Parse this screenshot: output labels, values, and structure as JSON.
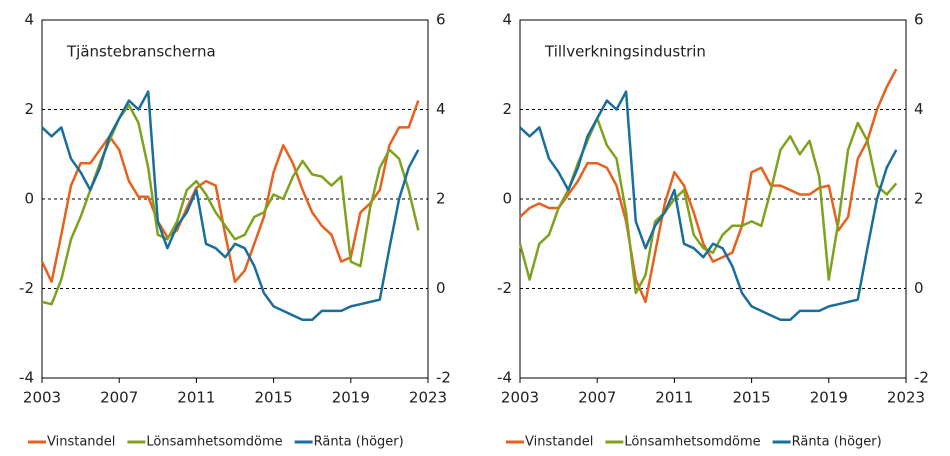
{
  "chart_data": [
    {
      "type": "line",
      "title": "Tjänstebranscherna",
      "x": [
        2003,
        2003.5,
        2004,
        2004.5,
        2005,
        2005.5,
        2006,
        2006.5,
        2007,
        2007.5,
        2008,
        2008.5,
        2009,
        2009.5,
        2010,
        2010.5,
        2011,
        2011.5,
        2012,
        2012.5,
        2013,
        2013.5,
        2014,
        2014.5,
        2015,
        2015.5,
        2016,
        2016.5,
        2017,
        2017.5,
        2018,
        2018.5,
        2019,
        2019.5,
        2020,
        2020.5,
        2021,
        2021.5,
        2022,
        2022.5
      ],
      "xlim": [
        2003,
        2023
      ],
      "xticks": [
        2003,
        2007,
        2011,
        2015,
        2019,
        2023
      ],
      "ylim": [
        -4,
        4
      ],
      "yticks": [
        -4,
        -2,
        0,
        2,
        4
      ],
      "y2lim": [
        -2,
        6
      ],
      "y2ticks": [
        -2,
        0,
        2,
        4,
        6
      ],
      "grid": true,
      "series": [
        {
          "name": "Vinstandel",
          "color": "#e8601c",
          "values": [
            -1.4,
            -1.85,
            -0.8,
            0.3,
            0.8,
            0.8,
            1.1,
            1.4,
            1.1,
            0.4,
            0.05,
            0.05,
            -0.5,
            -0.85,
            -0.7,
            -0.2,
            0.25,
            0.4,
            0.3,
            -0.8,
            -1.85,
            -1.6,
            -1.0,
            -0.4,
            0.6,
            1.2,
            0.8,
            0.2,
            -0.3,
            -0.6,
            -0.8,
            -1.4,
            -1.3,
            -0.3,
            -0.1,
            0.2,
            1.2,
            1.6,
            1.6,
            2.2
          ]
        },
        {
          "name": "Lönsamhetsomdöme",
          "color": "#7ea21e",
          "values": [
            -2.3,
            -2.35,
            -1.8,
            -0.9,
            -0.4,
            0.2,
            0.8,
            1.3,
            1.8,
            2.1,
            1.7,
            0.7,
            -0.8,
            -0.9,
            -0.5,
            0.2,
            0.4,
            0.1,
            -0.3,
            -0.6,
            -0.9,
            -0.8,
            -0.4,
            -0.3,
            0.1,
            0.0,
            0.5,
            0.85,
            0.55,
            0.5,
            0.3,
            0.5,
            -1.4,
            -1.5,
            -0.2,
            0.7,
            1.1,
            0.9,
            0.2,
            -0.7
          ]
        },
        {
          "name": "Ränta (höger)",
          "color": "#1a6e9e",
          "axis": "y2",
          "values": [
            3.6,
            3.4,
            3.6,
            2.9,
            2.6,
            2.2,
            2.7,
            3.4,
            3.8,
            4.2,
            4.0,
            4.4,
            1.5,
            0.9,
            1.4,
            1.7,
            2.2,
            1.0,
            0.9,
            0.7,
            1.0,
            0.9,
            0.5,
            -0.1,
            -0.4,
            -0.5,
            -0.6,
            -0.7,
            -0.7,
            -0.5,
            -0.5,
            -0.5,
            -0.4,
            -0.35,
            -0.3,
            -0.25,
            0.9,
            2.0,
            2.7,
            3.1
          ]
        }
      ]
    },
    {
      "type": "line",
      "title": "Tillverkningsindustrin",
      "x": [
        2003,
        2003.5,
        2004,
        2004.5,
        2005,
        2005.5,
        2006,
        2006.5,
        2007,
        2007.5,
        2008,
        2008.5,
        2009,
        2009.5,
        2010,
        2010.5,
        2011,
        2011.5,
        2012,
        2012.5,
        2013,
        2013.5,
        2014,
        2014.5,
        2015,
        2015.5,
        2016,
        2016.5,
        2017,
        2017.5,
        2018,
        2018.5,
        2019,
        2019.5,
        2020,
        2020.5,
        2021,
        2021.5,
        2022,
        2022.5
      ],
      "xlim": [
        2003,
        2023
      ],
      "xticks": [
        2003,
        2007,
        2011,
        2015,
        2019,
        2023
      ],
      "ylim": [
        -4,
        4
      ],
      "yticks": [
        -4,
        -2,
        0,
        2,
        4
      ],
      "y2lim": [
        -2,
        6
      ],
      "y2ticks": [
        -2,
        0,
        2,
        4,
        6
      ],
      "grid": true,
      "series": [
        {
          "name": "Vinstandel",
          "color": "#e8601c",
          "values": [
            -0.4,
            -0.2,
            -0.1,
            -0.2,
            -0.2,
            0.1,
            0.4,
            0.8,
            0.8,
            0.7,
            0.3,
            -0.5,
            -1.8,
            -2.3,
            -1.2,
            -0.1,
            0.6,
            0.3,
            -0.3,
            -1.0,
            -1.4,
            -1.3,
            -1.2,
            -0.6,
            0.6,
            0.7,
            0.3,
            0.3,
            0.2,
            0.1,
            0.1,
            0.25,
            0.3,
            -0.7,
            -0.4,
            0.9,
            1.3,
            2.0,
            2.5,
            2.9
          ]
        },
        {
          "name": "Lönsamhetsomdöme",
          "color": "#7ea21e",
          "values": [
            -1.0,
            -1.8,
            -1.0,
            -0.8,
            -0.2,
            0.2,
            0.8,
            1.3,
            1.8,
            1.2,
            0.9,
            -0.3,
            -2.1,
            -1.7,
            -0.5,
            -0.3,
            0.0,
            0.2,
            -0.8,
            -1.1,
            -1.2,
            -0.8,
            -0.6,
            -0.6,
            -0.5,
            -0.6,
            0.2,
            1.1,
            1.4,
            1.0,
            1.3,
            0.5,
            -1.8,
            -0.5,
            1.1,
            1.7,
            1.3,
            0.3,
            0.1,
            0.35
          ]
        },
        {
          "name": "Ränta (höger)",
          "color": "#1a6e9e",
          "axis": "y2",
          "values": [
            3.6,
            3.4,
            3.6,
            2.9,
            2.6,
            2.2,
            2.7,
            3.4,
            3.8,
            4.2,
            4.0,
            4.4,
            1.5,
            0.9,
            1.4,
            1.7,
            2.2,
            1.0,
            0.9,
            0.7,
            1.0,
            0.9,
            0.5,
            -0.1,
            -0.4,
            -0.5,
            -0.6,
            -0.7,
            -0.7,
            -0.5,
            -0.5,
            -0.5,
            -0.4,
            -0.35,
            -0.3,
            -0.25,
            0.9,
            2.0,
            2.7,
            3.1
          ]
        }
      ]
    }
  ]
}
